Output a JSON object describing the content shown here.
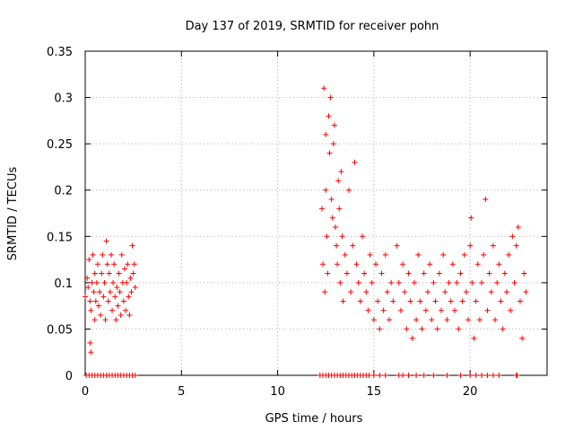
{
  "chart_data": {
    "type": "scatter",
    "title": "Day 137 of 2019, SRMTID for receiver pohn",
    "xlabel": "GPS time / hours",
    "ylabel": "SRMTID / TECUs",
    "xlim": [
      0,
      24
    ],
    "ylim": [
      0,
      0.35
    ],
    "xticks": [
      0,
      5,
      10,
      15,
      20
    ],
    "xtick_labels": [
      "0",
      "5",
      "10",
      "15",
      "20"
    ],
    "yticks": [
      0,
      0.05,
      0.1,
      0.15,
      0.2,
      0.25,
      0.3,
      0.35
    ],
    "ytick_labels": [
      "0",
      "0.05",
      "0.1",
      "0.15",
      "0.2",
      "0.25",
      "0.3",
      "0.35"
    ],
    "grid": true,
    "legend": "none",
    "marker": "+",
    "color": "#ff0000",
    "series": [
      {
        "name": "SRMTID",
        "points": [
          [
            0.0,
            0.085
          ],
          [
            0.1,
            0.105
          ],
          [
            0.15,
            0.095
          ],
          [
            0.2,
            0.125
          ],
          [
            0.25,
            0.08
          ],
          [
            0.25,
            0.035
          ],
          [
            0.3,
            0.025
          ],
          [
            0.3,
            0.07
          ],
          [
            0.35,
            0.1
          ],
          [
            0.4,
            0.13
          ],
          [
            0.45,
            0.09
          ],
          [
            0.5,
            0.06
          ],
          [
            0.5,
            0.11
          ],
          [
            0.55,
            0.08
          ],
          [
            0.6,
            0.1
          ],
          [
            0.65,
            0.12
          ],
          [
            0.7,
            0.075
          ],
          [
            0.75,
            0.09
          ],
          [
            0.8,
            0.065
          ],
          [
            0.85,
            0.11
          ],
          [
            0.9,
            0.13
          ],
          [
            0.95,
            0.085
          ],
          [
            1.0,
            0.1
          ],
          [
            1.05,
            0.06
          ],
          [
            1.1,
            0.145
          ],
          [
            1.15,
            0.12
          ],
          [
            1.2,
            0.08
          ],
          [
            1.25,
            0.11
          ],
          [
            1.3,
            0.09
          ],
          [
            1.35,
            0.13
          ],
          [
            1.4,
            0.07
          ],
          [
            1.45,
            0.1
          ],
          [
            1.5,
            0.12
          ],
          [
            1.55,
            0.085
          ],
          [
            1.6,
            0.06
          ],
          [
            1.65,
            0.095
          ],
          [
            1.7,
            0.075
          ],
          [
            1.75,
            0.11
          ],
          [
            1.8,
            0.09
          ],
          [
            1.85,
            0.065
          ],
          [
            1.9,
            0.13
          ],
          [
            1.95,
            0.1
          ],
          [
            2.0,
            0.08
          ],
          [
            2.05,
            0.115
          ],
          [
            2.1,
            0.07
          ],
          [
            2.15,
            0.1
          ],
          [
            2.2,
            0.12
          ],
          [
            2.25,
            0.085
          ],
          [
            2.3,
            0.065
          ],
          [
            2.35,
            0.105
          ],
          [
            2.4,
            0.09
          ],
          [
            2.45,
            0.14
          ],
          [
            2.5,
            0.11
          ],
          [
            2.55,
            0.12
          ],
          [
            2.6,
            0.095
          ],
          [
            12.3,
            0.18
          ],
          [
            12.35,
            0.12
          ],
          [
            12.4,
            0.31
          ],
          [
            12.45,
            0.09
          ],
          [
            12.5,
            0.2
          ],
          [
            12.5,
            0.26
          ],
          [
            12.55,
            0.15
          ],
          [
            12.6,
            0.11
          ],
          [
            12.65,
            0.28
          ],
          [
            12.7,
            0.24
          ],
          [
            12.75,
            0.3
          ],
          [
            12.8,
            0.19
          ],
          [
            12.85,
            0.17
          ],
          [
            12.9,
            0.25
          ],
          [
            12.95,
            0.27
          ],
          [
            13.0,
            0.16
          ],
          [
            13.05,
            0.14
          ],
          [
            13.1,
            0.12
          ],
          [
            13.15,
            0.21
          ],
          [
            13.2,
            0.18
          ],
          [
            13.25,
            0.1
          ],
          [
            13.3,
            0.22
          ],
          [
            13.35,
            0.15
          ],
          [
            13.4,
            0.08
          ],
          [
            13.5,
            0.13
          ],
          [
            13.6,
            0.11
          ],
          [
            13.7,
            0.2
          ],
          [
            13.8,
            0.09
          ],
          [
            13.9,
            0.14
          ],
          [
            14.0,
            0.23
          ],
          [
            14.1,
            0.12
          ],
          [
            14.2,
            0.1
          ],
          [
            14.3,
            0.08
          ],
          [
            14.4,
            0.15
          ],
          [
            14.5,
            0.11
          ],
          [
            14.6,
            0.09
          ],
          [
            14.7,
            0.07
          ],
          [
            14.8,
            0.13
          ],
          [
            14.9,
            0.1
          ],
          [
            15.0,
            0.06
          ],
          [
            15.1,
            0.12
          ],
          [
            15.2,
            0.08
          ],
          [
            15.3,
            0.05
          ],
          [
            15.4,
            0.11
          ],
          [
            15.5,
            0.07
          ],
          [
            15.6,
            0.13
          ],
          [
            15.7,
            0.09
          ],
          [
            15.8,
            0.06
          ],
          [
            15.9,
            0.1
          ],
          [
            16.0,
            0.08
          ],
          [
            16.2,
            0.14
          ],
          [
            16.3,
            0.1
          ],
          [
            16.4,
            0.07
          ],
          [
            16.5,
            0.12
          ],
          [
            16.6,
            0.09
          ],
          [
            16.7,
            0.05
          ],
          [
            16.8,
            0.11
          ],
          [
            16.9,
            0.08
          ],
          [
            17.0,
            0.04
          ],
          [
            17.1,
            0.1
          ],
          [
            17.2,
            0.06
          ],
          [
            17.3,
            0.13
          ],
          [
            17.4,
            0.08
          ],
          [
            17.5,
            0.05
          ],
          [
            17.6,
            0.11
          ],
          [
            17.7,
            0.07
          ],
          [
            17.8,
            0.09
          ],
          [
            17.9,
            0.12
          ],
          [
            18.0,
            0.06
          ],
          [
            18.1,
            0.1
          ],
          [
            18.2,
            0.08
          ],
          [
            18.3,
            0.05
          ],
          [
            18.4,
            0.11
          ],
          [
            18.5,
            0.07
          ],
          [
            18.6,
            0.13
          ],
          [
            18.7,
            0.09
          ],
          [
            18.8,
            0.06
          ],
          [
            18.9,
            0.1
          ],
          [
            19.0,
            0.08
          ],
          [
            19.1,
            0.12
          ],
          [
            19.2,
            0.07
          ],
          [
            19.3,
            0.1
          ],
          [
            19.4,
            0.05
          ],
          [
            19.5,
            0.11
          ],
          [
            19.6,
            0.08
          ],
          [
            19.7,
            0.13
          ],
          [
            19.8,
            0.09
          ],
          [
            19.9,
            0.06
          ],
          [
            20.0,
            0.14
          ],
          [
            20.05,
            0.17
          ],
          [
            20.1,
            0.1
          ],
          [
            20.2,
            0.04
          ],
          [
            20.3,
            0.08
          ],
          [
            20.4,
            0.12
          ],
          [
            20.5,
            0.06
          ],
          [
            20.6,
            0.1
          ],
          [
            20.7,
            0.13
          ],
          [
            20.8,
            0.19
          ],
          [
            20.9,
            0.07
          ],
          [
            21.0,
            0.11
          ],
          [
            21.1,
            0.09
          ],
          [
            21.2,
            0.14
          ],
          [
            21.3,
            0.06
          ],
          [
            21.4,
            0.1
          ],
          [
            21.5,
            0.12
          ],
          [
            21.6,
            0.08
          ],
          [
            21.7,
            0.05
          ],
          [
            21.8,
            0.11
          ],
          [
            21.9,
            0.09
          ],
          [
            22.0,
            0.13
          ],
          [
            22.1,
            0.07
          ],
          [
            22.2,
            0.15
          ],
          [
            22.3,
            0.1
          ],
          [
            22.4,
            0.14
          ],
          [
            22.5,
            0.16
          ],
          [
            22.6,
            0.08
          ],
          [
            22.7,
            0.04
          ],
          [
            22.8,
            0.11
          ],
          [
            22.9,
            0.09
          ]
        ],
        "zeros": [
          0.05,
          0.2,
          0.35,
          0.5,
          0.65,
          0.8,
          0.95,
          1.1,
          1.25,
          1.4,
          1.55,
          1.7,
          1.85,
          2.0,
          2.15,
          2.3,
          2.45,
          2.6,
          12.2,
          12.35,
          12.5,
          12.65,
          12.8,
          12.95,
          13.1,
          13.25,
          13.4,
          13.55,
          13.7,
          13.85,
          14.0,
          14.15,
          14.3,
          14.45,
          14.6,
          14.75,
          15.0,
          15.3,
          15.6,
          16.3,
          16.5,
          16.8,
          17.2,
          17.6,
          18.1,
          18.8,
          19.5,
          20.0,
          20.3,
          20.6,
          20.9,
          21.2,
          21.5,
          22.4,
          22.45
        ]
      }
    ]
  }
}
